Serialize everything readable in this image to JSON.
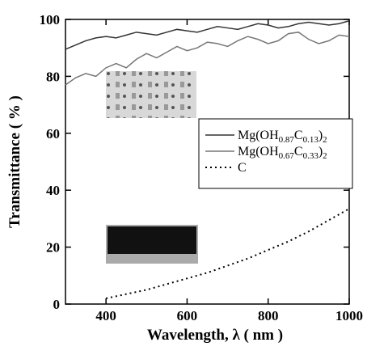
{
  "chart_data": {
    "type": "line",
    "x_label": "Wavelength, λ ( nm )",
    "y_label": "Transmittance ( % )",
    "xlim": [
      300,
      1000
    ],
    "ylim": [
      0,
      100
    ],
    "xticks": [
      400,
      600,
      800,
      1000
    ],
    "yticks": [
      0,
      20,
      40,
      60,
      80,
      100
    ],
    "legend": "right",
    "series": [
      {
        "name": "Mg(OH0.87C0.13)2",
        "color": "#333333",
        "dash": "solid",
        "x": [
          300,
          325,
          350,
          375,
          400,
          425,
          450,
          475,
          500,
          525,
          550,
          575,
          600,
          625,
          650,
          675,
          700,
          725,
          750,
          775,
          800,
          825,
          850,
          875,
          900,
          925,
          950,
          975,
          1000
        ],
        "values": [
          89.5,
          91,
          92.5,
          93.5,
          94,
          93.5,
          94.5,
          95.5,
          95,
          94.5,
          95.5,
          96.5,
          96,
          95.5,
          96.5,
          97.5,
          97,
          96.5,
          97.5,
          98.5,
          98,
          97,
          97.5,
          98.5,
          99,
          98.5,
          98,
          98.5,
          99.5
        ]
      },
      {
        "name": "Mg(OH0.67C0.33)2",
        "color": "#777777",
        "dash": "solid",
        "x": [
          300,
          325,
          350,
          375,
          400,
          425,
          450,
          475,
          500,
          525,
          550,
          575,
          600,
          625,
          650,
          675,
          700,
          725,
          750,
          775,
          800,
          825,
          850,
          875,
          900,
          925,
          950,
          975,
          1000
        ],
        "values": [
          77,
          79.5,
          81,
          80,
          83,
          84.5,
          83,
          86,
          88,
          86.5,
          88.5,
          90.5,
          89,
          90,
          92,
          91.5,
          90.5,
          92.5,
          94,
          93,
          91.5,
          92.5,
          95,
          95.5,
          93,
          91.5,
          92.5,
          94.5,
          94
        ]
      },
      {
        "name": "C",
        "color": "#000000",
        "dash": "dotted",
        "x": [
          400,
          450,
          500,
          550,
          600,
          650,
          700,
          750,
          800,
          850,
          900,
          950,
          1000
        ],
        "values": [
          2,
          3.5,
          5,
          7,
          9,
          11,
          13.5,
          16,
          19,
          22,
          25.5,
          29.5,
          33.5
        ]
      }
    ]
  }
}
